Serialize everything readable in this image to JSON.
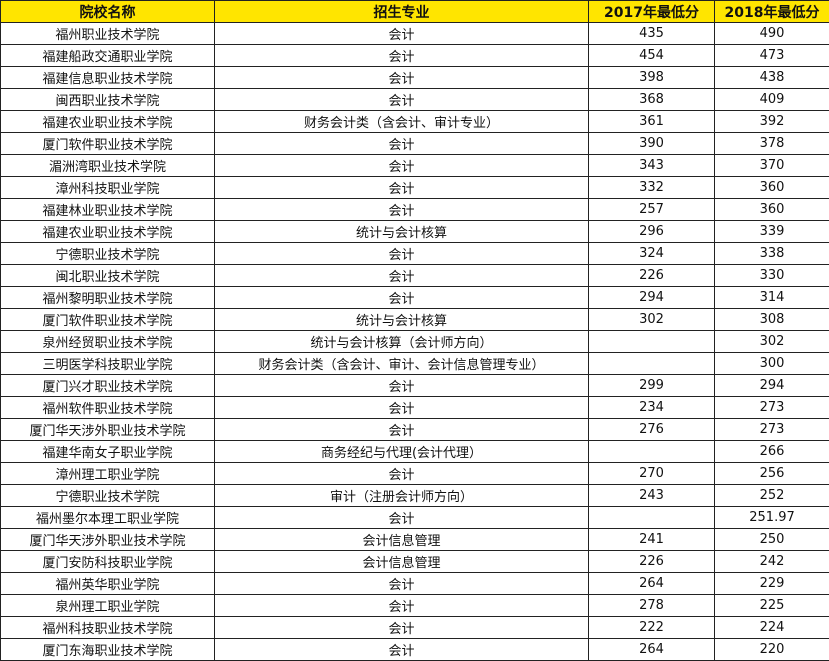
{
  "header_color": "#FFE500",
  "columns": [
    "院校名称",
    "招生专业",
    "2017年最低分",
    "2018年最低分"
  ],
  "rows": [
    [
      "福州职业技术学院",
      "会计",
      "435",
      "490"
    ],
    [
      "福建船政交通职业学院",
      "会计",
      "454",
      "473"
    ],
    [
      "福建信息职业技术学院",
      "会计",
      "398",
      "438"
    ],
    [
      "闽西职业技术学院",
      "会计",
      "368",
      "409"
    ],
    [
      "福建农业职业技术学院",
      "财务会计类（含会计、审计专业）",
      "361",
      "392"
    ],
    [
      "厦门软件职业技术学院",
      "会计",
      "390",
      "378"
    ],
    [
      "湄洲湾职业技术学院",
      "会计",
      "343",
      "370"
    ],
    [
      "漳州科技职业学院",
      "会计",
      "332",
      "360"
    ],
    [
      "福建林业职业技术学院",
      "会计",
      "257",
      "360"
    ],
    [
      "福建农业职业技术学院",
      "统计与会计核算",
      "296",
      "339"
    ],
    [
      "宁德职业技术学院",
      "会计",
      "324",
      "338"
    ],
    [
      "闽北职业技术学院",
      "会计",
      "226",
      "330"
    ],
    [
      "福州黎明职业技术学院",
      "会计",
      "294",
      "314"
    ],
    [
      "厦门软件职业技术学院",
      "统计与会计核算",
      "302",
      "308"
    ],
    [
      "泉州经贸职业技术学院",
      "统计与会计核算（会计师方向）",
      "",
      "302"
    ],
    [
      "三明医学科技职业学院",
      "财务会计类（含会计、审计、会计信息管理专业）",
      "",
      "300"
    ],
    [
      "厦门兴才职业技术学院",
      "会计",
      "299",
      "294"
    ],
    [
      "福州软件职业技术学院",
      "会计",
      "234",
      "273"
    ],
    [
      "厦门华天涉外职业技术学院",
      "会计",
      "276",
      "273"
    ],
    [
      "福建华南女子职业学院",
      "商务经纪与代理(会计代理）",
      "",
      "266"
    ],
    [
      "漳州理工职业学院",
      "会计",
      "270",
      "256"
    ],
    [
      "宁德职业技术学院",
      "审计（注册会计师方向）",
      "243",
      "252"
    ],
    [
      "福州墨尔本理工职业学院",
      "会计",
      "",
      "251.97"
    ],
    [
      "厦门华天涉外职业技术学院",
      "会计信息管理",
      "241",
      "250"
    ],
    [
      "厦门安防科技职业学院",
      "会计信息管理",
      "226",
      "242"
    ],
    [
      "福州英华职业学院",
      "会计",
      "264",
      "229"
    ],
    [
      "泉州理工职业学院",
      "会计",
      "278",
      "225"
    ],
    [
      "福州科技职业技术学院",
      "会计",
      "222",
      "224"
    ],
    [
      "厦门东海职业技术学院",
      "会计",
      "264",
      "220"
    ]
  ]
}
